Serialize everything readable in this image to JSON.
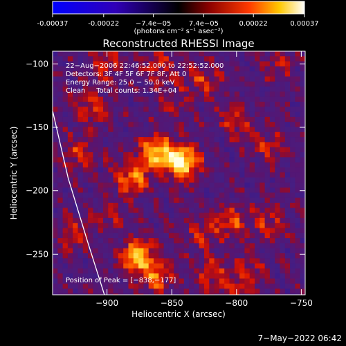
{
  "colorbar": {
    "ticks": [
      "-0.00037",
      "-0.00022",
      "−7.4e−05",
      "7.4e−05",
      "0.00022",
      "0.00037"
    ],
    "tick_values": [
      -0.00037,
      -0.00022,
      -7.4e-05,
      7.4e-05,
      0.00022,
      0.00037
    ],
    "range": [
      -0.00037,
      0.00037
    ],
    "units": "(photons cm⁻² s⁻¹ asec⁻²)"
  },
  "chart_data": {
    "type": "heatmap",
    "title": "Reconstructed RHESSI Image",
    "xlabel": "Heliocentric X (arcsec)",
    "ylabel": "Heliocentric Y (arcsec)",
    "xlim": [
      -942,
      -747
    ],
    "ylim": [
      -282,
      -90
    ],
    "x_ticks": [
      -900,
      -850,
      -800,
      -750
    ],
    "x_tick_labels": [
      "−900",
      "−850",
      "−800",
      "−750"
    ],
    "y_ticks": [
      -100,
      -150,
      -200,
      -250
    ],
    "y_tick_labels": [
      "−100",
      "−150",
      "−200",
      "−250"
    ],
    "annotations": [
      "22−Aug−2006 22:46:52.000 to 22:52:52.000",
      "Detectors: 3F 4F 5F 6F 7F 8F, Att 0",
      "Energy Range: 25.0 − 50.0 keV",
      "Clean     Total counts: 1.34E+04"
    ],
    "peak_label": "Position of Peak = [−838,−177]",
    "peak_position": [
      -838,
      -177
    ],
    "sources": [
      {
        "x": -842,
        "y": -177,
        "value": 0.00037
      },
      {
        "x": -862,
        "y": -170,
        "value": 0.00028
      },
      {
        "x": -880,
        "y": -190,
        "value": 0.00022
      },
      {
        "x": -876,
        "y": -252,
        "value": 0.00028
      },
      {
        "x": -862,
        "y": -268,
        "value": 0.00018
      },
      {
        "x": -920,
        "y": -170,
        "value": 0.00015
      },
      {
        "x": -925,
        "y": -235,
        "value": 0.00012
      },
      {
        "x": -913,
        "y": -135,
        "value": 0.00014
      },
      {
        "x": -900,
        "y": -100,
        "value": 0.00013
      },
      {
        "x": -825,
        "y": -112,
        "value": 0.00013
      },
      {
        "x": -848,
        "y": -130,
        "value": 0.0001
      },
      {
        "x": -800,
        "y": -145,
        "value": 0.00012
      },
      {
        "x": -775,
        "y": -165,
        "value": 0.00011
      },
      {
        "x": -805,
        "y": -225,
        "value": 0.00016
      },
      {
        "x": -775,
        "y": -225,
        "value": 0.00013
      },
      {
        "x": -828,
        "y": -235,
        "value": 0.0001
      },
      {
        "x": -818,
        "y": -265,
        "value": 0.00014
      },
      {
        "x": -790,
        "y": -262,
        "value": 0.00011
      },
      {
        "x": -898,
        "y": -218,
        "value": 9e-05
      },
      {
        "x": -770,
        "y": -100,
        "value": 9e-05
      },
      {
        "x": -860,
        "y": -102,
        "value": 0.00012
      },
      {
        "x": -800,
        "y": -280,
        "value": 9e-05
      }
    ],
    "limb": [
      [
        -942,
        -137
      ],
      [
        -930,
        -190
      ],
      [
        -915,
        -240
      ],
      [
        -902,
        -282
      ]
    ],
    "grid": false
  },
  "footer": {
    "timestamp": "7−May−2022 06:42"
  },
  "colors": {
    "background": "#000000",
    "text": "#ffffff",
    "limb": "#ffffff"
  }
}
